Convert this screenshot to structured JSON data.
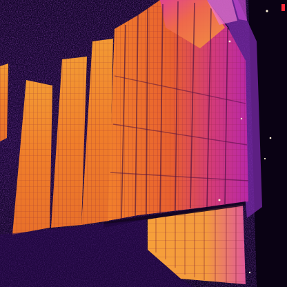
{
  "image": {
    "subject": "thermal-infrared-solar-panel-array",
    "palette": "inferno",
    "colors": {
      "background": "#0b0318",
      "ground_noise": "#3a0f6e",
      "cool": "#5a1890",
      "warm": "#b0248a",
      "hot_magenta": "#d03cc0",
      "hot_orange": "#f07a2c",
      "hottest": "#ffb43a"
    }
  }
}
